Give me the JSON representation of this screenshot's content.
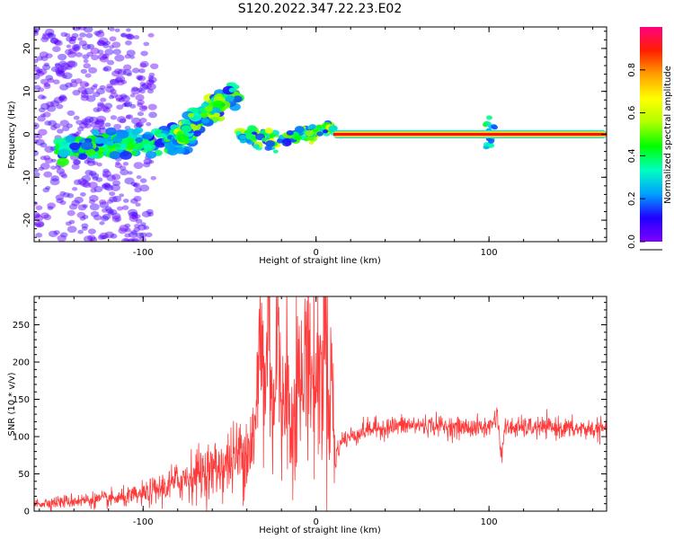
{
  "title": "S120.2022.347.22.23.E02",
  "colors": {
    "snr_line": "#ff3a3a",
    "spectral_trace": "#ff1010",
    "bar_gradient": [
      "#7f00ff",
      "#2000ff",
      "#00a0ff",
      "#00ffc0",
      "#00ff00",
      "#b0ff00",
      "#ffff00",
      "#ffa000",
      "#ff2000",
      "#ff0080"
    ]
  },
  "chart_data": [
    {
      "type": "heatmap",
      "xlabel": "Height of straight line (km)",
      "ylabel": "Frequency (Hz)",
      "xlim": [
        -163,
        168
      ],
      "ylim": [
        -25,
        25
      ],
      "x_ticks": [
        -100,
        0,
        100
      ],
      "x_tick_labels": [
        "-100",
        "0",
        "100"
      ],
      "y_ticks": [
        -20,
        -10,
        0,
        10,
        20
      ],
      "y_tick_labels": [
        "-20",
        "-10",
        "0",
        "10",
        "20"
      ],
      "colorbar": {
        "label": "Normalized spectral amplitude",
        "range": [
          0.0,
          1.0
        ],
        "ticks": [
          0.0,
          0.2,
          0.4,
          0.6,
          0.8
        ],
        "tick_labels": [
          "0.0",
          "0.2",
          "0.4",
          "0.6",
          "0.8"
        ]
      },
      "features": [
        {
          "name": "noise",
          "x_range": [
            -163,
            -100
          ],
          "freq_range": [
            -25,
            25
          ],
          "amplitude": 0.05
        },
        {
          "name": "band",
          "x_range": [
            -150,
            -70
          ],
          "freq_center": -2,
          "freq_halfwidth": 2.5,
          "amplitude": 0.25
        },
        {
          "name": "rising_arm",
          "x_range": [
            -80,
            -45
          ],
          "freq_range": [
            0,
            10
          ],
          "amplitude": 0.3
        },
        {
          "name": "kink",
          "x_range": [
            -45,
            10
          ],
          "freq_range": [
            -3,
            2
          ],
          "amplitude": 0.3
        },
        {
          "name": "steady_line",
          "x_range": [
            10,
            168
          ],
          "freq_center": 0,
          "amplitude": 1.0
        },
        {
          "name": "burst",
          "x_center": 100,
          "freq_range": [
            -3,
            4
          ],
          "amplitude": 0.3
        }
      ]
    },
    {
      "type": "line",
      "xlabel": "Height of straight line (km)",
      "ylabel": "SNR (10 * v/v)",
      "xlim": [
        -163,
        168
      ],
      "ylim": [
        0,
        288
      ],
      "x_ticks": [
        -100,
        0,
        100
      ],
      "x_tick_labels": [
        "-100",
        "0",
        "100"
      ],
      "y_ticks": [
        0,
        50,
        100,
        150,
        200,
        250
      ],
      "y_tick_labels": [
        "0",
        "50",
        "100",
        "150",
        "200",
        "250"
      ],
      "series": [
        {
          "x": [
            -163,
            -150,
            -140,
            -130,
            -120,
            -110,
            -100,
            -90,
            -80,
            -70,
            -60,
            -50,
            -45,
            -40,
            -35,
            -32,
            -30,
            -27,
            -25,
            -22,
            -20,
            -17,
            -15,
            -12,
            -10,
            -7,
            -5,
            -3,
            0,
            3,
            5,
            7,
            9,
            11,
            12,
            15,
            20,
            30,
            40,
            50,
            60,
            70,
            80,
            90,
            100,
            105,
            107,
            109,
            112,
            120,
            130,
            140,
            150,
            160,
            168
          ],
          "y": [
            10,
            12,
            14,
            15,
            16,
            18,
            22,
            30,
            40,
            50,
            55,
            65,
            75,
            85,
            100,
            260,
            150,
            280,
            120,
            250,
            100,
            220,
            90,
            180,
            170,
            165,
            270,
            175,
            175,
            180,
            280,
            150,
            190,
            60,
            80,
            95,
            100,
            110,
            112,
            115,
            115,
            115,
            112,
            112,
            112,
            130,
            70,
            110,
            112,
            112,
            112,
            112,
            110,
            110,
            110
          ]
        }
      ]
    }
  ]
}
